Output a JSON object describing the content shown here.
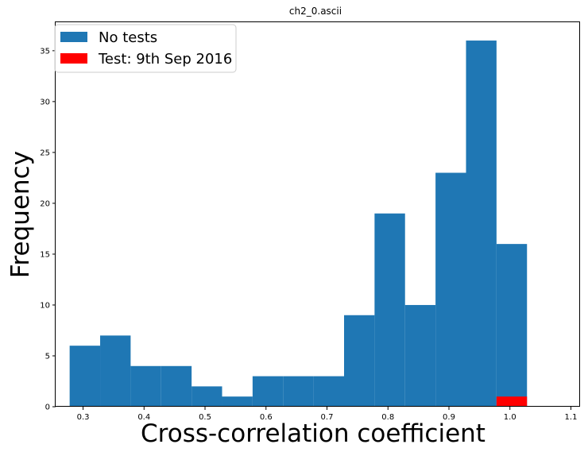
{
  "chart_data": {
    "type": "bar",
    "title": "ch2_0.ascii",
    "xlabel": "Cross-correlation coefficient",
    "ylabel": "Frequency",
    "xlim": [
      0.255,
      1.115
    ],
    "ylim": [
      0,
      37.8
    ],
    "xticks": [
      0.3,
      0.4,
      0.5,
      0.6,
      0.7,
      0.8,
      0.9,
      1.0,
      1.1
    ],
    "xtick_labels": [
      "0.3",
      "0.4",
      "0.5",
      "0.6",
      "0.7",
      "0.8",
      "0.9",
      "1.0",
      "1.1"
    ],
    "yticks": [
      0,
      5,
      10,
      15,
      20,
      25,
      30,
      35
    ],
    "ytick_labels": [
      "0",
      "5",
      "10",
      "15",
      "20",
      "25",
      "30",
      "35"
    ],
    "grid": false,
    "legend_position": "top-left",
    "series": [
      {
        "name": "No tests",
        "color": "#1f77b4",
        "bins": [
          {
            "x0": 0.278,
            "x1": 0.328,
            "value": 6
          },
          {
            "x0": 0.328,
            "x1": 0.378,
            "value": 7
          },
          {
            "x0": 0.378,
            "x1": 0.428,
            "value": 4
          },
          {
            "x0": 0.428,
            "x1": 0.478,
            "value": 4
          },
          {
            "x0": 0.478,
            "x1": 0.528,
            "value": 2
          },
          {
            "x0": 0.528,
            "x1": 0.578,
            "value": 1
          },
          {
            "x0": 0.578,
            "x1": 0.628,
            "value": 3
          },
          {
            "x0": 0.628,
            "x1": 0.678,
            "value": 3
          },
          {
            "x0": 0.678,
            "x1": 0.728,
            "value": 3
          },
          {
            "x0": 0.728,
            "x1": 0.778,
            "value": 9
          },
          {
            "x0": 0.778,
            "x1": 0.828,
            "value": 19
          },
          {
            "x0": 0.828,
            "x1": 0.878,
            "value": 10
          },
          {
            "x0": 0.878,
            "x1": 0.928,
            "value": 23
          },
          {
            "x0": 0.928,
            "x1": 0.978,
            "value": 36
          },
          {
            "x0": 0.978,
            "x1": 1.028,
            "value": 16
          }
        ]
      },
      {
        "name": "Test: 9th Sep 2016",
        "color": "#ff0000",
        "bins": [
          {
            "x0": 0.978,
            "x1": 1.028,
            "value": 1
          }
        ]
      }
    ]
  }
}
